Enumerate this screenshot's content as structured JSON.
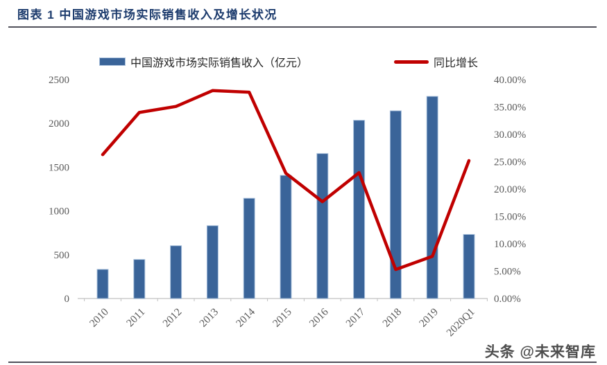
{
  "header": {
    "title": "图表 1 中国游戏市场实际销售收入及增长状况"
  },
  "watermark": {
    "text": "头条 @未来智库"
  },
  "colors": {
    "title": "#1C3B6D",
    "bar": "#3A6499",
    "bar_edge": "#A8C0DC",
    "line": "#C00000",
    "tick_text": "#595959",
    "baseline": "#D9D9D9",
    "divider": "#50505A"
  },
  "chart_data": {
    "type": "bar",
    "subtype": "bar+line combo, dual axis",
    "categories": [
      "2010",
      "2011",
      "2012",
      "2013",
      "2014",
      "2015",
      "2016",
      "2017",
      "2018",
      "2019",
      "2020Q1"
    ],
    "series": [
      {
        "name": "中国游戏市场实际销售收入（亿元）",
        "type": "bar",
        "axis": "left",
        "color": "#3A6499",
        "values": [
          333,
          446,
          603,
          832,
          1145,
          1407,
          1656,
          2036,
          2144,
          2309,
          732
        ]
      },
      {
        "name": "同比增长",
        "type": "line",
        "axis": "right",
        "color": "#C00000",
        "values": [
          26.3,
          34.0,
          35.1,
          38.0,
          37.7,
          22.9,
          17.7,
          23.0,
          5.3,
          7.7,
          25.2
        ]
      }
    ],
    "left_axis": {
      "min": 0,
      "max": 2500,
      "step": 500,
      "tick_labels": [
        "0",
        "500",
        "1000",
        "1500",
        "2000",
        "2500"
      ]
    },
    "right_axis": {
      "min": 0,
      "max": 40,
      "step": 5,
      "tick_labels": [
        "0.00%",
        "5.00%",
        "10.00%",
        "15.00%",
        "20.00%",
        "25.00%",
        "30.00%",
        "35.00%",
        "40.00%"
      ]
    },
    "grid": false,
    "legend_position": "top"
  }
}
